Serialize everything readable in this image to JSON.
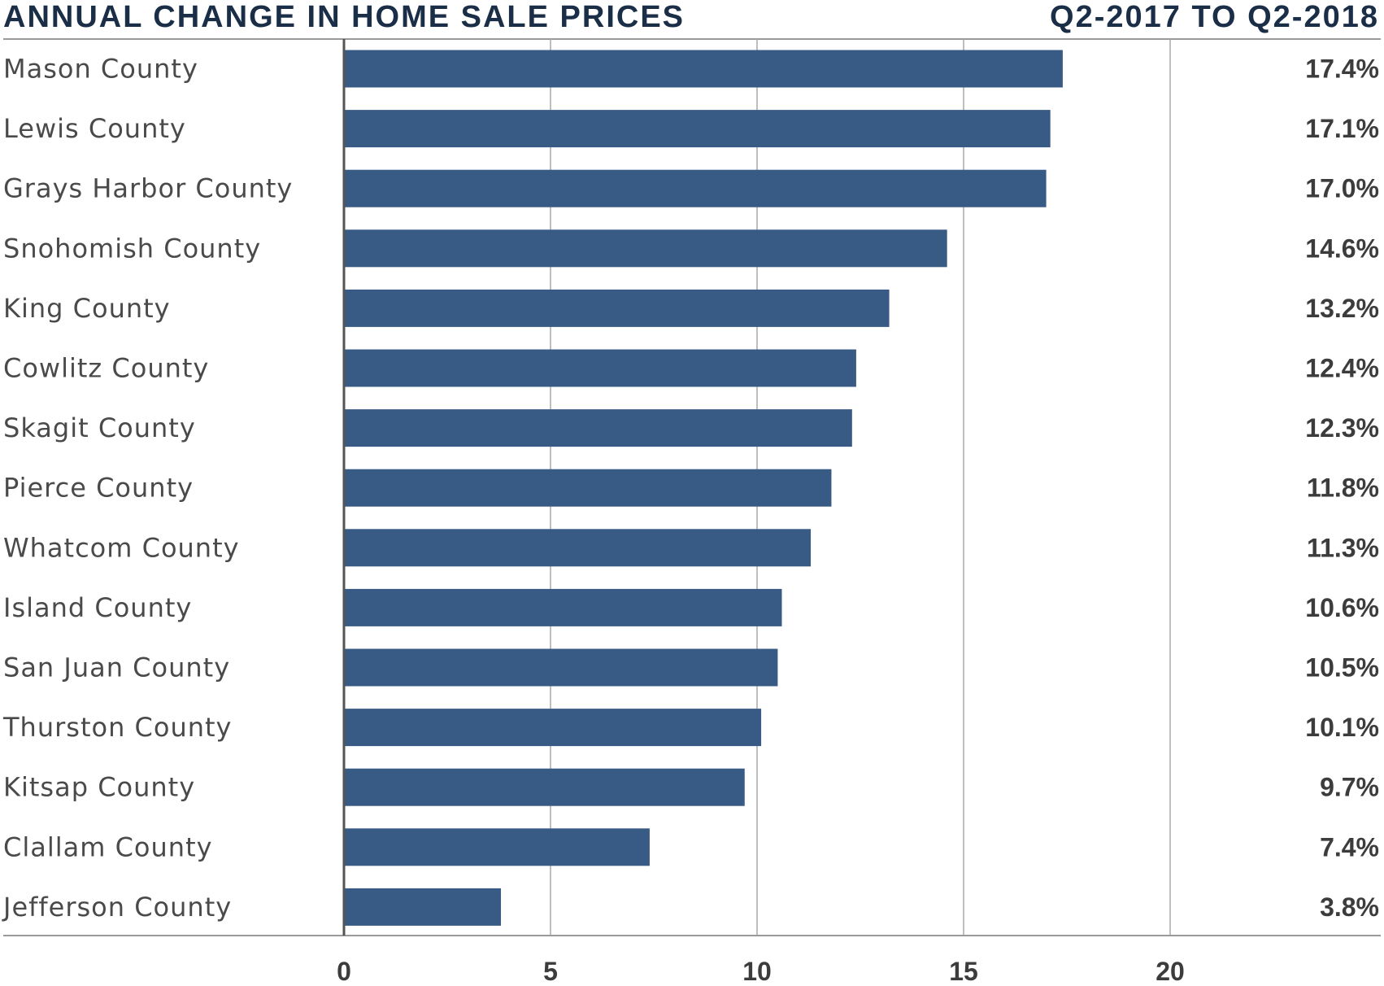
{
  "chart_data": {
    "type": "bar",
    "orientation": "horizontal",
    "title": "ANNUAL CHANGE IN HOME SALE PRICES",
    "subtitle": "Q2-2017 TO Q2-2018",
    "categories": [
      "Mason County",
      "Lewis County",
      "Grays Harbor County",
      "Snohomish County",
      "King County",
      "Cowlitz County",
      "Skagit County",
      "Pierce County",
      "Whatcom County",
      "Island County",
      "San Juan County",
      "Thurston County",
      "Kitsap County",
      "Clallam County",
      "Jefferson County"
    ],
    "values": [
      17.4,
      17.1,
      17.0,
      14.6,
      13.2,
      12.4,
      12.3,
      11.8,
      11.3,
      10.6,
      10.5,
      10.1,
      9.7,
      7.4,
      3.8
    ],
    "value_labels": [
      "17.4%",
      "17.1%",
      "17.0%",
      "14.6%",
      "13.2%",
      "12.4%",
      "12.3%",
      "11.8%",
      "11.3%",
      "10.6%",
      "10.5%",
      "10.1%",
      "9.7%",
      "7.4%",
      "3.8%"
    ],
    "xlim": [
      0,
      25
    ],
    "xticks": [
      0,
      5,
      10,
      15,
      20
    ],
    "xtick_labels": [
      "0",
      "5",
      "10",
      "15",
      "20"
    ],
    "xlabel": "",
    "ylabel": "",
    "grid": true,
    "legend": "none",
    "bar_color": "#385b85",
    "title_color": "#1b2e47"
  }
}
